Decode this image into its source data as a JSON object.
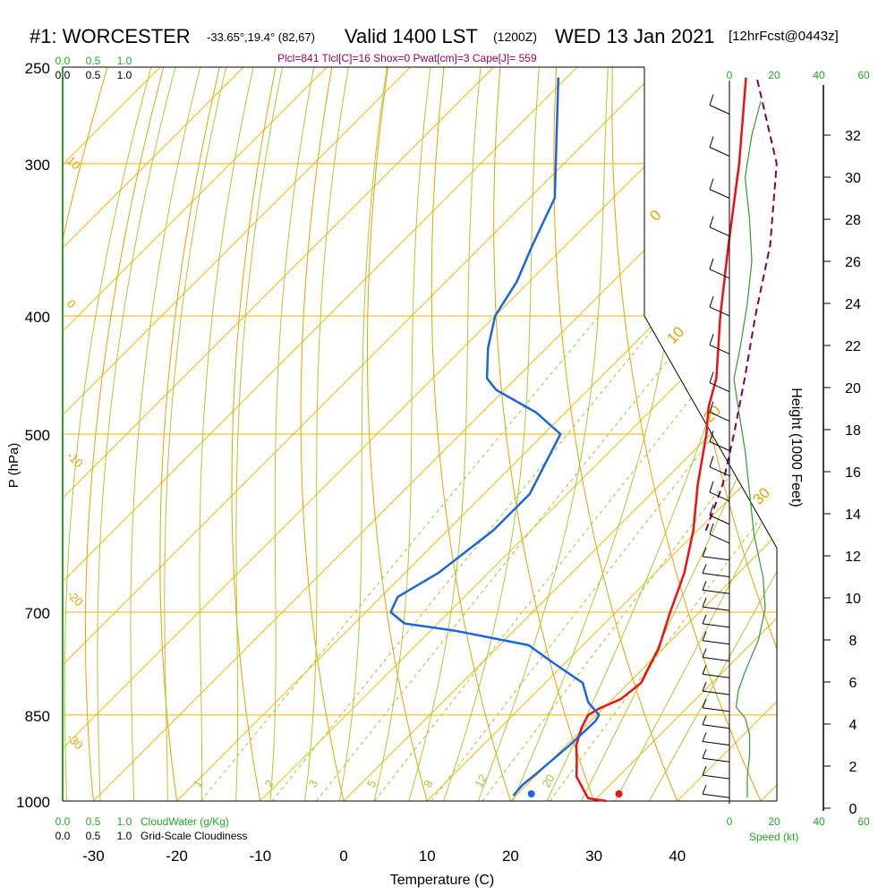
{
  "header": {
    "station": "#1: WORCESTER",
    "coords": "-33.65°,19.4° (82,67)",
    "valid": "Valid 1400 LST",
    "zulu": "(1200Z)",
    "date": "WED 13 Jan 2021",
    "forecast": "[12hrFcst@0443z]",
    "diagnostics": "Plcl=841 Tlcl[C]=16 Shox=0 Pwat[cm]=3 Cape[J]= 559"
  },
  "chart_data": {
    "type": "skew-t",
    "xlabel": "Temperature (C)",
    "ylabel": "P (hPa)",
    "pressure_ticks": [
      "250",
      "300",
      "400",
      "500",
      "700",
      "850",
      "1000"
    ],
    "pressure_levels": [
      250,
      300,
      400,
      500,
      700,
      850,
      1000
    ],
    "temperature_ticks": [
      "-30",
      "-20",
      "-10",
      "0",
      "10",
      "20",
      "30",
      "40"
    ],
    "temperature_values": [
      -30,
      -20,
      -10,
      0,
      10,
      20,
      30,
      40
    ],
    "temperature_profile": [
      {
        "p": 1000,
        "t": 31.5
      },
      {
        "p": 995,
        "t": 29
      },
      {
        "p": 980,
        "t": 27.5
      },
      {
        "p": 955,
        "t": 25
      },
      {
        "p": 925,
        "t": 23
      },
      {
        "p": 900,
        "t": 21.2
      },
      {
        "p": 870,
        "t": 19.7
      },
      {
        "p": 850,
        "t": 19
      },
      {
        "p": 840,
        "t": 19.5
      },
      {
        "p": 825,
        "t": 21
      },
      {
        "p": 800,
        "t": 21.5
      },
      {
        "p": 775,
        "t": 20.5
      },
      {
        "p": 750,
        "t": 19.5
      },
      {
        "p": 700,
        "t": 16.5
      },
      {
        "p": 650,
        "t": 13.5
      },
      {
        "p": 600,
        "t": 9.5
      },
      {
        "p": 550,
        "t": 4.5
      },
      {
        "p": 500,
        "t": -0.5
      },
      {
        "p": 475,
        "t": -3.5
      },
      {
        "p": 450,
        "t": -6
      },
      {
        "p": 400,
        "t": -13
      },
      {
        "p": 350,
        "t": -20.5
      },
      {
        "p": 300,
        "t": -29
      },
      {
        "p": 255,
        "t": -38.5
      }
    ],
    "dewpoint_profile": [
      {
        "p": 990,
        "t": 19.7
      },
      {
        "p": 970,
        "t": 19.5
      },
      {
        "p": 950,
        "t": 19.8
      },
      {
        "p": 900,
        "t": 20.4
      },
      {
        "p": 860,
        "t": 20.6
      },
      {
        "p": 850,
        "t": 20.3
      },
      {
        "p": 830,
        "t": 17.5
      },
      {
        "p": 800,
        "t": 14.5
      },
      {
        "p": 770,
        "t": 8.5
      },
      {
        "p": 745,
        "t": 3.5
      },
      {
        "p": 725,
        "t": -7
      },
      {
        "p": 715,
        "t": -14
      },
      {
        "p": 700,
        "t": -17
      },
      {
        "p": 680,
        "t": -18
      },
      {
        "p": 650,
        "t": -16
      },
      {
        "p": 600,
        "t": -14.5
      },
      {
        "p": 560,
        "t": -14.5
      },
      {
        "p": 500,
        "t": -18
      },
      {
        "p": 480,
        "t": -23.5
      },
      {
        "p": 460,
        "t": -31
      },
      {
        "p": 450,
        "t": -33.5
      },
      {
        "p": 425,
        "t": -37
      },
      {
        "p": 400,
        "t": -40
      },
      {
        "p": 375,
        "t": -41.5
      },
      {
        "p": 350,
        "t": -44
      },
      {
        "p": 320,
        "t": -47
      },
      {
        "p": 255,
        "t": -61
      }
    ],
    "parcel_profile": [
      {
        "p": 600,
        "t": 11
      },
      {
        "p": 550,
        "t": 7.5
      },
      {
        "p": 500,
        "t": 2.8
      },
      {
        "p": 450,
        "t": -2.6
      },
      {
        "p": 400,
        "t": -8.8
      },
      {
        "p": 350,
        "t": -15.5
      },
      {
        "p": 300,
        "t": -24.5
      },
      {
        "p": 255,
        "t": -37.2
      }
    ],
    "surface_temperature": 33,
    "surface_dewpoint": 22.5,
    "dry_adiabat_labels": [
      "-30",
      "-20",
      "-10",
      "0",
      "10",
      "20",
      "30"
    ],
    "moist_adiabat_labels": [
      "10",
      "30",
      "0"
    ],
    "mixing_ratio_labels": [
      "1",
      "2",
      "3",
      "5",
      "8",
      "12",
      "20"
    ],
    "mixing_ratio_values": [
      1,
      2,
      3,
      5,
      8,
      12,
      20
    ],
    "cloudwater_label": "CloudWater (g/Kg)",
    "cloudiness_label": "Grid-Scale Cloudiness",
    "cloudwater_ticks": [
      "0.0",
      "0.5",
      "1.0"
    ],
    "cloudiness_ticks": [
      "0.0",
      "0.5",
      "1.0"
    ],
    "speed_label": "Speed (kt)",
    "speed_ticks": [
      "0",
      "20",
      "40",
      "60"
    ],
    "speed_values": [
      0,
      20,
      40,
      60
    ],
    "height_label": "Height (1000 Feet)",
    "height_ticks": [
      "0",
      "2",
      "4",
      "6",
      "8",
      "10",
      "12",
      "14",
      "16",
      "18",
      "20",
      "22",
      "24",
      "26",
      "28",
      "30",
      "32"
    ],
    "height_values": [
      0,
      2,
      4,
      6,
      8,
      10,
      12,
      14,
      16,
      18,
      20,
      22,
      24,
      26,
      28,
      30,
      32
    ],
    "wind_speed_profile": [
      {
        "h": 0.5,
        "s": 8
      },
      {
        "h": 1.5,
        "s": 8
      },
      {
        "h": 2.5,
        "s": 9
      },
      {
        "h": 3.5,
        "s": 9
      },
      {
        "h": 4.3,
        "s": 7
      },
      {
        "h": 4.8,
        "s": 3
      },
      {
        "h": 5.6,
        "s": 4
      },
      {
        "h": 6.5,
        "s": 7
      },
      {
        "h": 8,
        "s": 13
      },
      {
        "h": 9.5,
        "s": 16
      },
      {
        "h": 11,
        "s": 15
      },
      {
        "h": 13,
        "s": 11
      },
      {
        "h": 15,
        "s": 9
      },
      {
        "h": 17,
        "s": 7
      },
      {
        "h": 19,
        "s": 4
      },
      {
        "h": 20.4,
        "s": 2
      },
      {
        "h": 22,
        "s": 5
      },
      {
        "h": 24,
        "s": 8
      },
      {
        "h": 26,
        "s": 10
      },
      {
        "h": 28,
        "s": 9
      },
      {
        "h": 30,
        "s": 7
      },
      {
        "h": 32,
        "s": 10
      },
      {
        "h": 33.6,
        "s": 14
      }
    ],
    "wind_barb_heights": [
      0.5,
      1.4,
      2.2,
      3,
      3.8,
      4.6,
      5.4,
      6.2,
      7,
      7.8,
      8.6,
      9.4,
      10.2,
      11,
      11.8,
      12.6,
      13.5,
      14.6,
      15.8,
      17,
      18.4,
      19.8,
      21.6,
      23.4,
      25.2,
      27.2,
      29,
      31,
      33
    ]
  },
  "colors": {
    "temperature": "#ee1111",
    "dewpoint": "#1a66dd",
    "parcel": "#800055",
    "isobar": "#f0b400",
    "isotherm": "#f5b800",
    "dry_adiabat": "#ee9e00",
    "moist_adiabat": "#aacc33",
    "mixing_ratio": "#99cc33",
    "axis_green": "#22aa22",
    "wind": "#000000"
  }
}
